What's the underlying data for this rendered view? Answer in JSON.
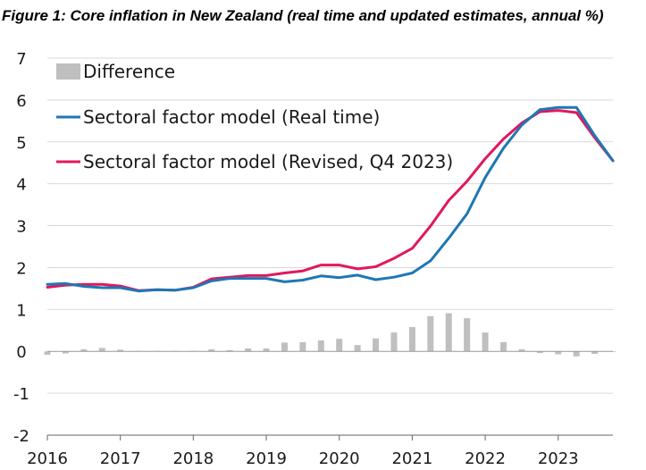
{
  "figure_title": "Figure 1: Core inflation in New Zealand (real time and updated estimates, annual %)",
  "colors": {
    "real_time": "#1f77b4",
    "revised": "#e0185e",
    "difference": "#bfbfbf"
  },
  "chart_data": {
    "type": "line",
    "title": "Figure 1: Core inflation in New Zealand (real time and updated estimates, annual %)",
    "xlabel": "",
    "ylabel": "",
    "ylim": [
      -2,
      7
    ],
    "yticks": [
      "-2",
      "-1",
      "0",
      "1",
      "2",
      "3",
      "4",
      "5",
      "6",
      "7"
    ],
    "xticks": [
      "2016",
      "2017",
      "2018",
      "2019",
      "2020",
      "2021",
      "2022",
      "2023"
    ],
    "xlim": [
      2016.0,
      2023.75
    ],
    "grid": "horizontal",
    "legend_position": "top-left",
    "x": [
      2016.0,
      2016.25,
      2016.5,
      2016.75,
      2017.0,
      2017.25,
      2017.5,
      2017.75,
      2018.0,
      2018.25,
      2018.5,
      2018.75,
      2019.0,
      2019.25,
      2019.5,
      2019.75,
      2020.0,
      2020.25,
      2020.5,
      2020.75,
      2021.0,
      2021.25,
      2021.5,
      2021.75,
      2022.0,
      2022.25,
      2022.5,
      2022.75,
      2023.0,
      2023.25,
      2023.5,
      2023.75
    ],
    "series": [
      {
        "name": "Difference",
        "kind": "bar",
        "values": [
          -0.08,
          -0.05,
          0.05,
          0.08,
          0.04,
          0.01,
          0.01,
          0.01,
          0.01,
          0.05,
          0.03,
          0.07,
          0.07,
          0.21,
          0.22,
          0.26,
          0.3,
          0.15,
          0.31,
          0.45,
          0.58,
          0.84,
          0.91,
          0.79,
          0.45,
          0.22,
          0.05,
          -0.04,
          -0.07,
          -0.12,
          -0.06,
          0.0
        ]
      },
      {
        "name": "Sectoral factor model (Real time)",
        "kind": "line",
        "values": [
          1.6,
          1.62,
          1.55,
          1.52,
          1.52,
          1.44,
          1.47,
          1.46,
          1.52,
          1.68,
          1.74,
          1.74,
          1.74,
          1.66,
          1.7,
          1.8,
          1.76,
          1.82,
          1.71,
          1.77,
          1.87,
          2.16,
          2.7,
          3.28,
          4.15,
          4.85,
          5.4,
          5.77,
          5.82,
          5.82,
          5.15,
          4.55
        ]
      },
      {
        "name": "Sectoral factor model (Revised, Q4 2023)",
        "kind": "line",
        "values": [
          1.53,
          1.58,
          1.6,
          1.6,
          1.56,
          1.45,
          1.47,
          1.46,
          1.53,
          1.73,
          1.77,
          1.81,
          1.81,
          1.87,
          1.92,
          2.06,
          2.06,
          1.97,
          2.02,
          2.22,
          2.46,
          2.99,
          3.6,
          4.06,
          4.6,
          5.07,
          5.45,
          5.72,
          5.75,
          5.7,
          5.1,
          4.55
        ]
      }
    ]
  }
}
